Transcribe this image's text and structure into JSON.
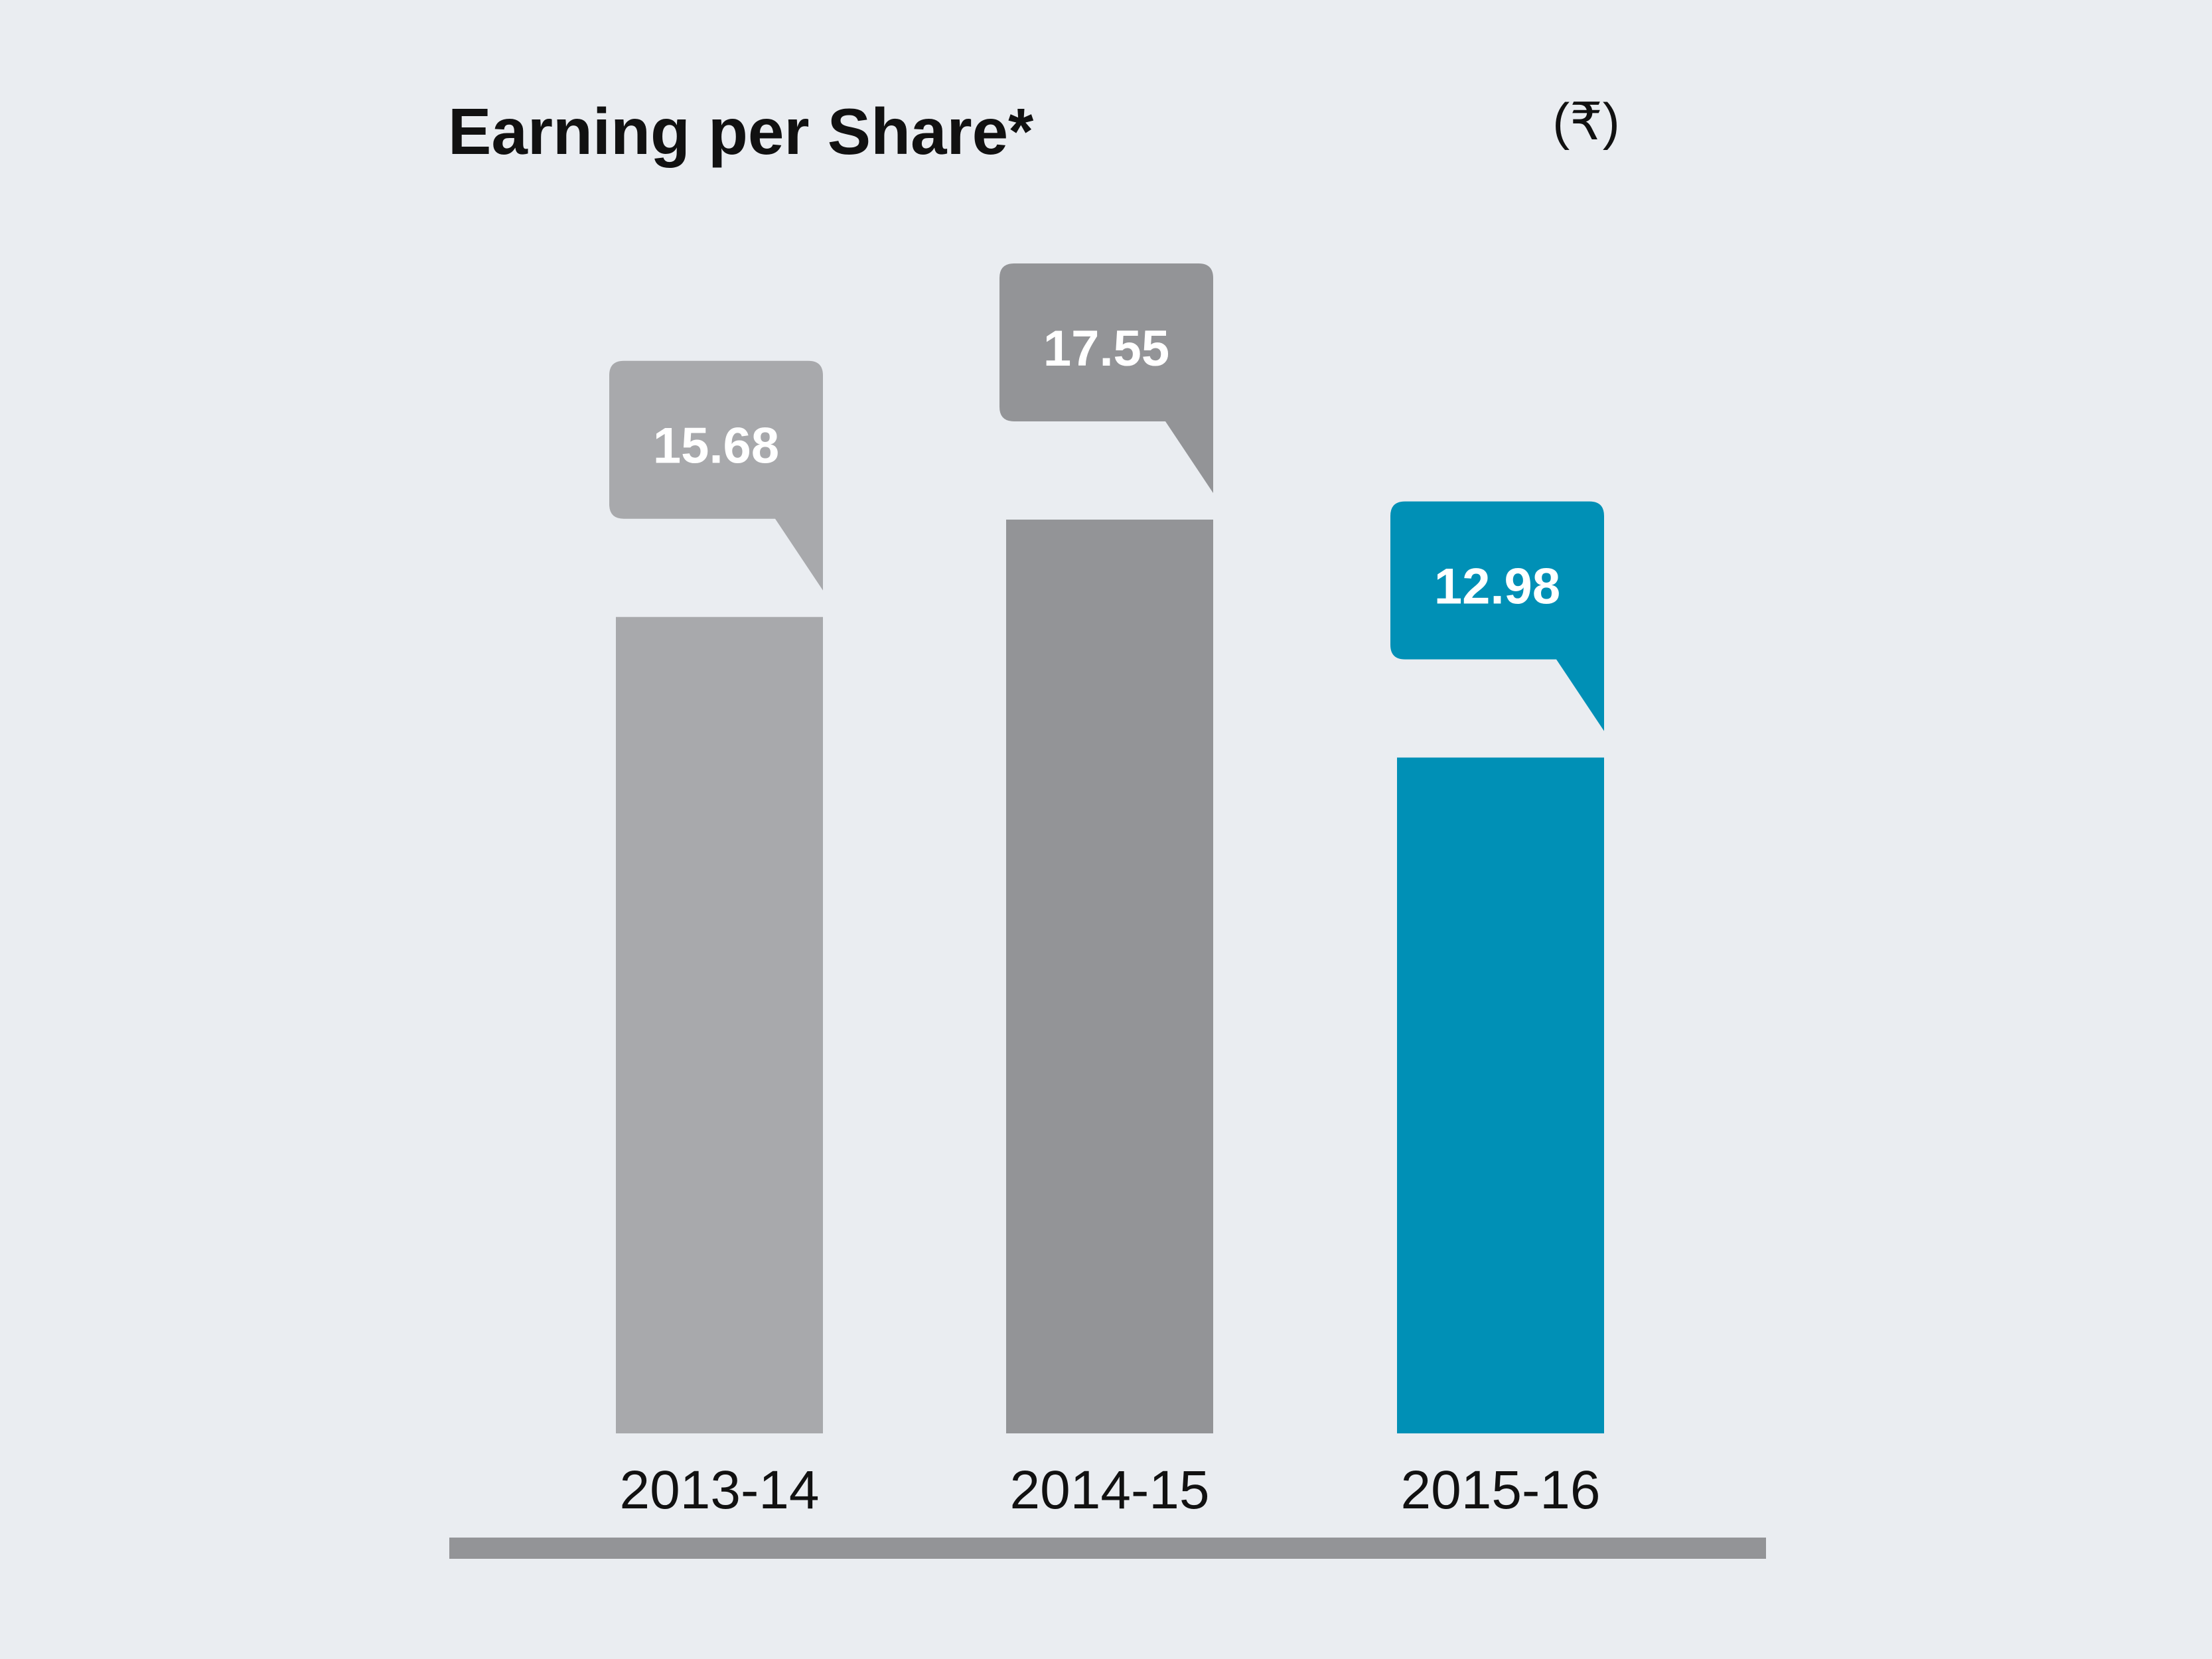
{
  "chart_data": {
    "type": "bar",
    "title": "Earning per Share*",
    "unit_label": "(₹)",
    "categories": [
      "2013-14",
      "2014-15",
      "2015-16"
    ],
    "values": [
      15.68,
      17.55,
      12.98
    ],
    "value_labels": [
      "15.68",
      "17.55",
      "12.98"
    ],
    "ylim": [
      0,
      17.55
    ],
    "xlabel": "",
    "ylabel": "",
    "grid": false,
    "legend": "none"
  },
  "colors": {
    "background": "#eaedf1",
    "bars": [
      "#a8a9ac",
      "#939497",
      "#0090b6"
    ],
    "axis_line": "#939497",
    "title_text": "#111111",
    "value_label_text": "#ffffff"
  }
}
